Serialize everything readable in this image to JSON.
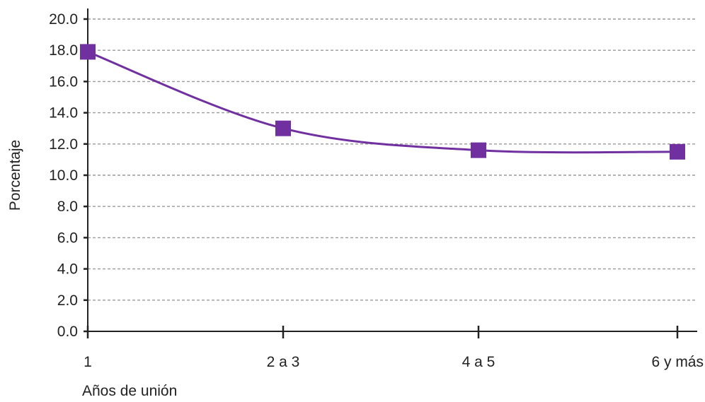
{
  "chart_data": {
    "type": "line",
    "categories": [
      "1",
      "2 a 3",
      "4 a 5",
      "6 y más"
    ],
    "series": [
      {
        "values": [
          17.9,
          13.0,
          11.6,
          11.5
        ]
      }
    ],
    "xlabel": "Años de unión",
    "ylabel": "Porcentaje",
    "ylim": [
      0,
      20
    ],
    "yticks": [
      "0.0",
      "2.0",
      "4.0",
      "6.0",
      "8.0",
      "10.0",
      "12.0",
      "14.0",
      "16.0",
      "18.0",
      "20.0"
    ],
    "grid": true,
    "smooth": true,
    "colors": {
      "series": "#7030a0",
      "grid": "#9a9a9a",
      "axis": "#222222"
    }
  }
}
